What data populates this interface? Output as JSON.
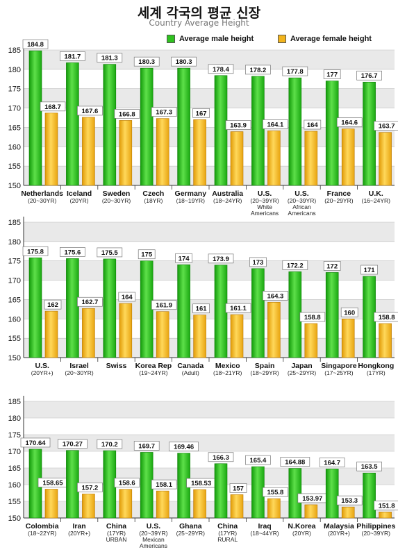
{
  "title": "세계 각국의 평균 신장",
  "subtitle": "Country Average Height",
  "colors": {
    "male": "#2fc21f",
    "female": "#f2b41c"
  },
  "chart_data": [
    {
      "type": "bar",
      "ylim": [
        150,
        185
      ],
      "yticks": [
        150,
        155,
        160,
        165,
        170,
        175,
        180,
        185
      ],
      "grid": true,
      "legend": "top-right",
      "series": [
        {
          "name": "Average male height",
          "values": [
            184.8,
            181.7,
            181.3,
            180.3,
            180.3,
            178.4,
            178.2,
            177.8,
            177,
            176.7
          ]
        },
        {
          "name": "Average female height",
          "values": [
            168.7,
            167.6,
            166.8,
            167.3,
            167,
            163.9,
            164.1,
            164,
            164.6,
            163.7
          ]
        }
      ],
      "value_labels": {
        "male": [
          "184.8",
          "181.7",
          "181.3",
          "180.3",
          "180.3",
          "178.4",
          "178.2",
          "177.8",
          "177",
          "176.7"
        ],
        "female": [
          "168.7",
          "167.6",
          "166.8",
          "167.3",
          "167",
          "163.9",
          "164.1",
          "164",
          "164.6",
          "163.7"
        ]
      },
      "categories": [
        {
          "name": "Netherlands",
          "lines": [
            "(20~30YR)"
          ]
        },
        {
          "name": "Iceland",
          "lines": [
            "(20YR)"
          ]
        },
        {
          "name": "Sweden",
          "lines": [
            "(20~30YR)"
          ]
        },
        {
          "name": "Czech",
          "lines": [
            "(18YR)"
          ]
        },
        {
          "name": "Germany",
          "lines": [
            "(18~19YR)"
          ]
        },
        {
          "name": "Australia",
          "lines": [
            "(18~24YR)"
          ]
        },
        {
          "name": "U.S.",
          "lines": [
            "(20~39YR)",
            "White",
            "Americans"
          ]
        },
        {
          "name": "U.S.",
          "lines": [
            "(20~39YR)",
            "African",
            "Americans"
          ]
        },
        {
          "name": "France",
          "lines": [
            "(20~29YR)"
          ]
        },
        {
          "name": "U.K.",
          "lines": [
            "(16~24YR)"
          ]
        }
      ]
    },
    {
      "type": "bar",
      "ylim": [
        150,
        185
      ],
      "yticks": [
        150,
        155,
        160,
        165,
        170,
        175,
        180,
        185
      ],
      "grid": true,
      "series": [
        {
          "name": "Average male height",
          "values": [
            175.8,
            175.6,
            175.5,
            175,
            174,
            173.9,
            173,
            172.2,
            172,
            171
          ]
        },
        {
          "name": "Average female height",
          "values": [
            162,
            162.7,
            164,
            161.9,
            161,
            161.1,
            164.3,
            158.8,
            160,
            158.8
          ]
        }
      ],
      "value_labels": {
        "male": [
          "175.8",
          "175.6",
          "175.5",
          "175",
          "174",
          "173.9",
          "173",
          "172.2",
          "172",
          "171"
        ],
        "female": [
          "162",
          "162.7",
          "164",
          "161.9",
          "161",
          "161.1",
          "164.3",
          "158.8",
          "160",
          "158.8"
        ]
      },
      "categories": [
        {
          "name": "U.S.",
          "lines": [
            "(20YR+)"
          ]
        },
        {
          "name": "Israel",
          "lines": [
            "(20~30YR)"
          ]
        },
        {
          "name": "Swiss",
          "lines": []
        },
        {
          "name": "Korea Rep",
          "lines": [
            "(19~24YR)"
          ]
        },
        {
          "name": "Canada",
          "lines": [
            "(Adult)"
          ]
        },
        {
          "name": "Mexico",
          "lines": [
            "(18~21YR)"
          ]
        },
        {
          "name": "Spain",
          "lines": [
            "(18~29YR)"
          ]
        },
        {
          "name": "Japan",
          "lines": [
            "(25~29YR)"
          ]
        },
        {
          "name": "Singapore",
          "lines": [
            "(17~25YR)"
          ]
        },
        {
          "name": "Hongkong",
          "lines": [
            "(17YR)"
          ]
        }
      ]
    },
    {
      "type": "bar",
      "ylim": [
        150,
        185
      ],
      "yticks": [
        150,
        155,
        160,
        165,
        170,
        175,
        180,
        185
      ],
      "grid": true,
      "series": [
        {
          "name": "Average male height",
          "values": [
            170.64,
            170.27,
            170.2,
            169.7,
            169.46,
            166.3,
            165.4,
            164.88,
            164.7,
            163.5
          ]
        },
        {
          "name": "Average female height",
          "values": [
            158.65,
            157.2,
            158.6,
            158.1,
            158.53,
            157,
            155.8,
            153.97,
            153.3,
            151.8
          ]
        }
      ],
      "value_labels": {
        "male": [
          "170.64",
          "170.27",
          "170.2",
          "169.7",
          "169.46",
          "166.3",
          "165.4",
          "164.88",
          "164.7",
          "163.5"
        ],
        "female": [
          "158.65",
          "157.2",
          "158.6",
          "158.1",
          "158.53",
          "157",
          "155.8",
          "153.97",
          "153.3",
          "151.8"
        ]
      },
      "categories": [
        {
          "name": "Colombia",
          "lines": [
            "(18~22YR)"
          ]
        },
        {
          "name": "Iran",
          "lines": [
            "(20YR+)"
          ]
        },
        {
          "name": "China",
          "lines": [
            "(17YR)",
            "URBAN"
          ]
        },
        {
          "name": "U.S.",
          "lines": [
            "(20~39YR)",
            "Mexican",
            "Americans"
          ]
        },
        {
          "name": "Ghana",
          "lines": [
            "(25~29YR)"
          ]
        },
        {
          "name": "China",
          "lines": [
            "(17YR)",
            "RURAL"
          ]
        },
        {
          "name": "Iraq",
          "lines": [
            "(18~44YR)"
          ]
        },
        {
          "name": "N.Korea",
          "lines": [
            "(20YR)"
          ]
        },
        {
          "name": "Malaysia",
          "lines": [
            "(20YR+)"
          ]
        },
        {
          "name": "Philippines",
          "lines": [
            "(20~39YR)"
          ]
        }
      ]
    }
  ]
}
